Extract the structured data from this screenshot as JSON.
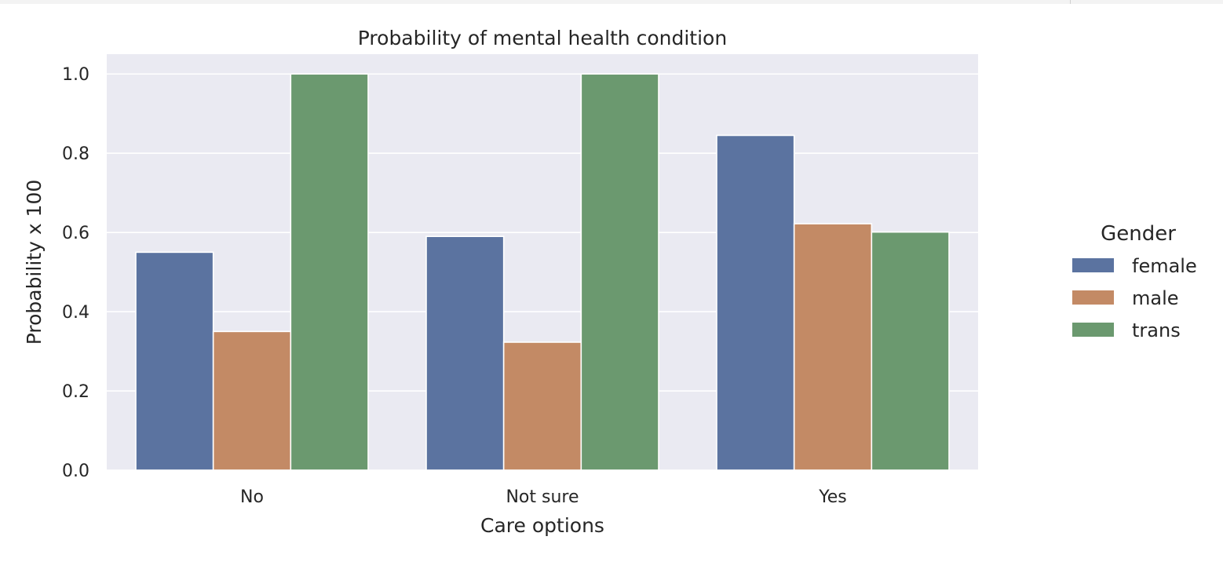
{
  "chart_data": {
    "type": "bar",
    "title": "Probability of mental health condition",
    "xlabel": "Care options",
    "ylabel": "Probability x 100",
    "categories": [
      "No",
      "Not sure",
      "Yes"
    ],
    "series": [
      {
        "name": "female",
        "values": [
          0.55,
          0.59,
          0.845
        ],
        "color": "#5b73a0"
      },
      {
        "name": "male",
        "values": [
          0.35,
          0.323,
          0.622
        ],
        "color": "#c38a65"
      },
      {
        "name": "trans",
        "values": [
          1.0,
          1.0,
          0.601
        ],
        "color": "#6b996f"
      }
    ],
    "ylim": [
      0,
      1.05
    ],
    "yticks": [
      "0.0",
      "0.2",
      "0.4",
      "0.6",
      "0.8",
      "1.0"
    ],
    "grid": true,
    "legend": {
      "title": "Gender",
      "placement": "right-outside"
    },
    "background": "#eaeaf2",
    "grid_color": "#ffffff"
  }
}
